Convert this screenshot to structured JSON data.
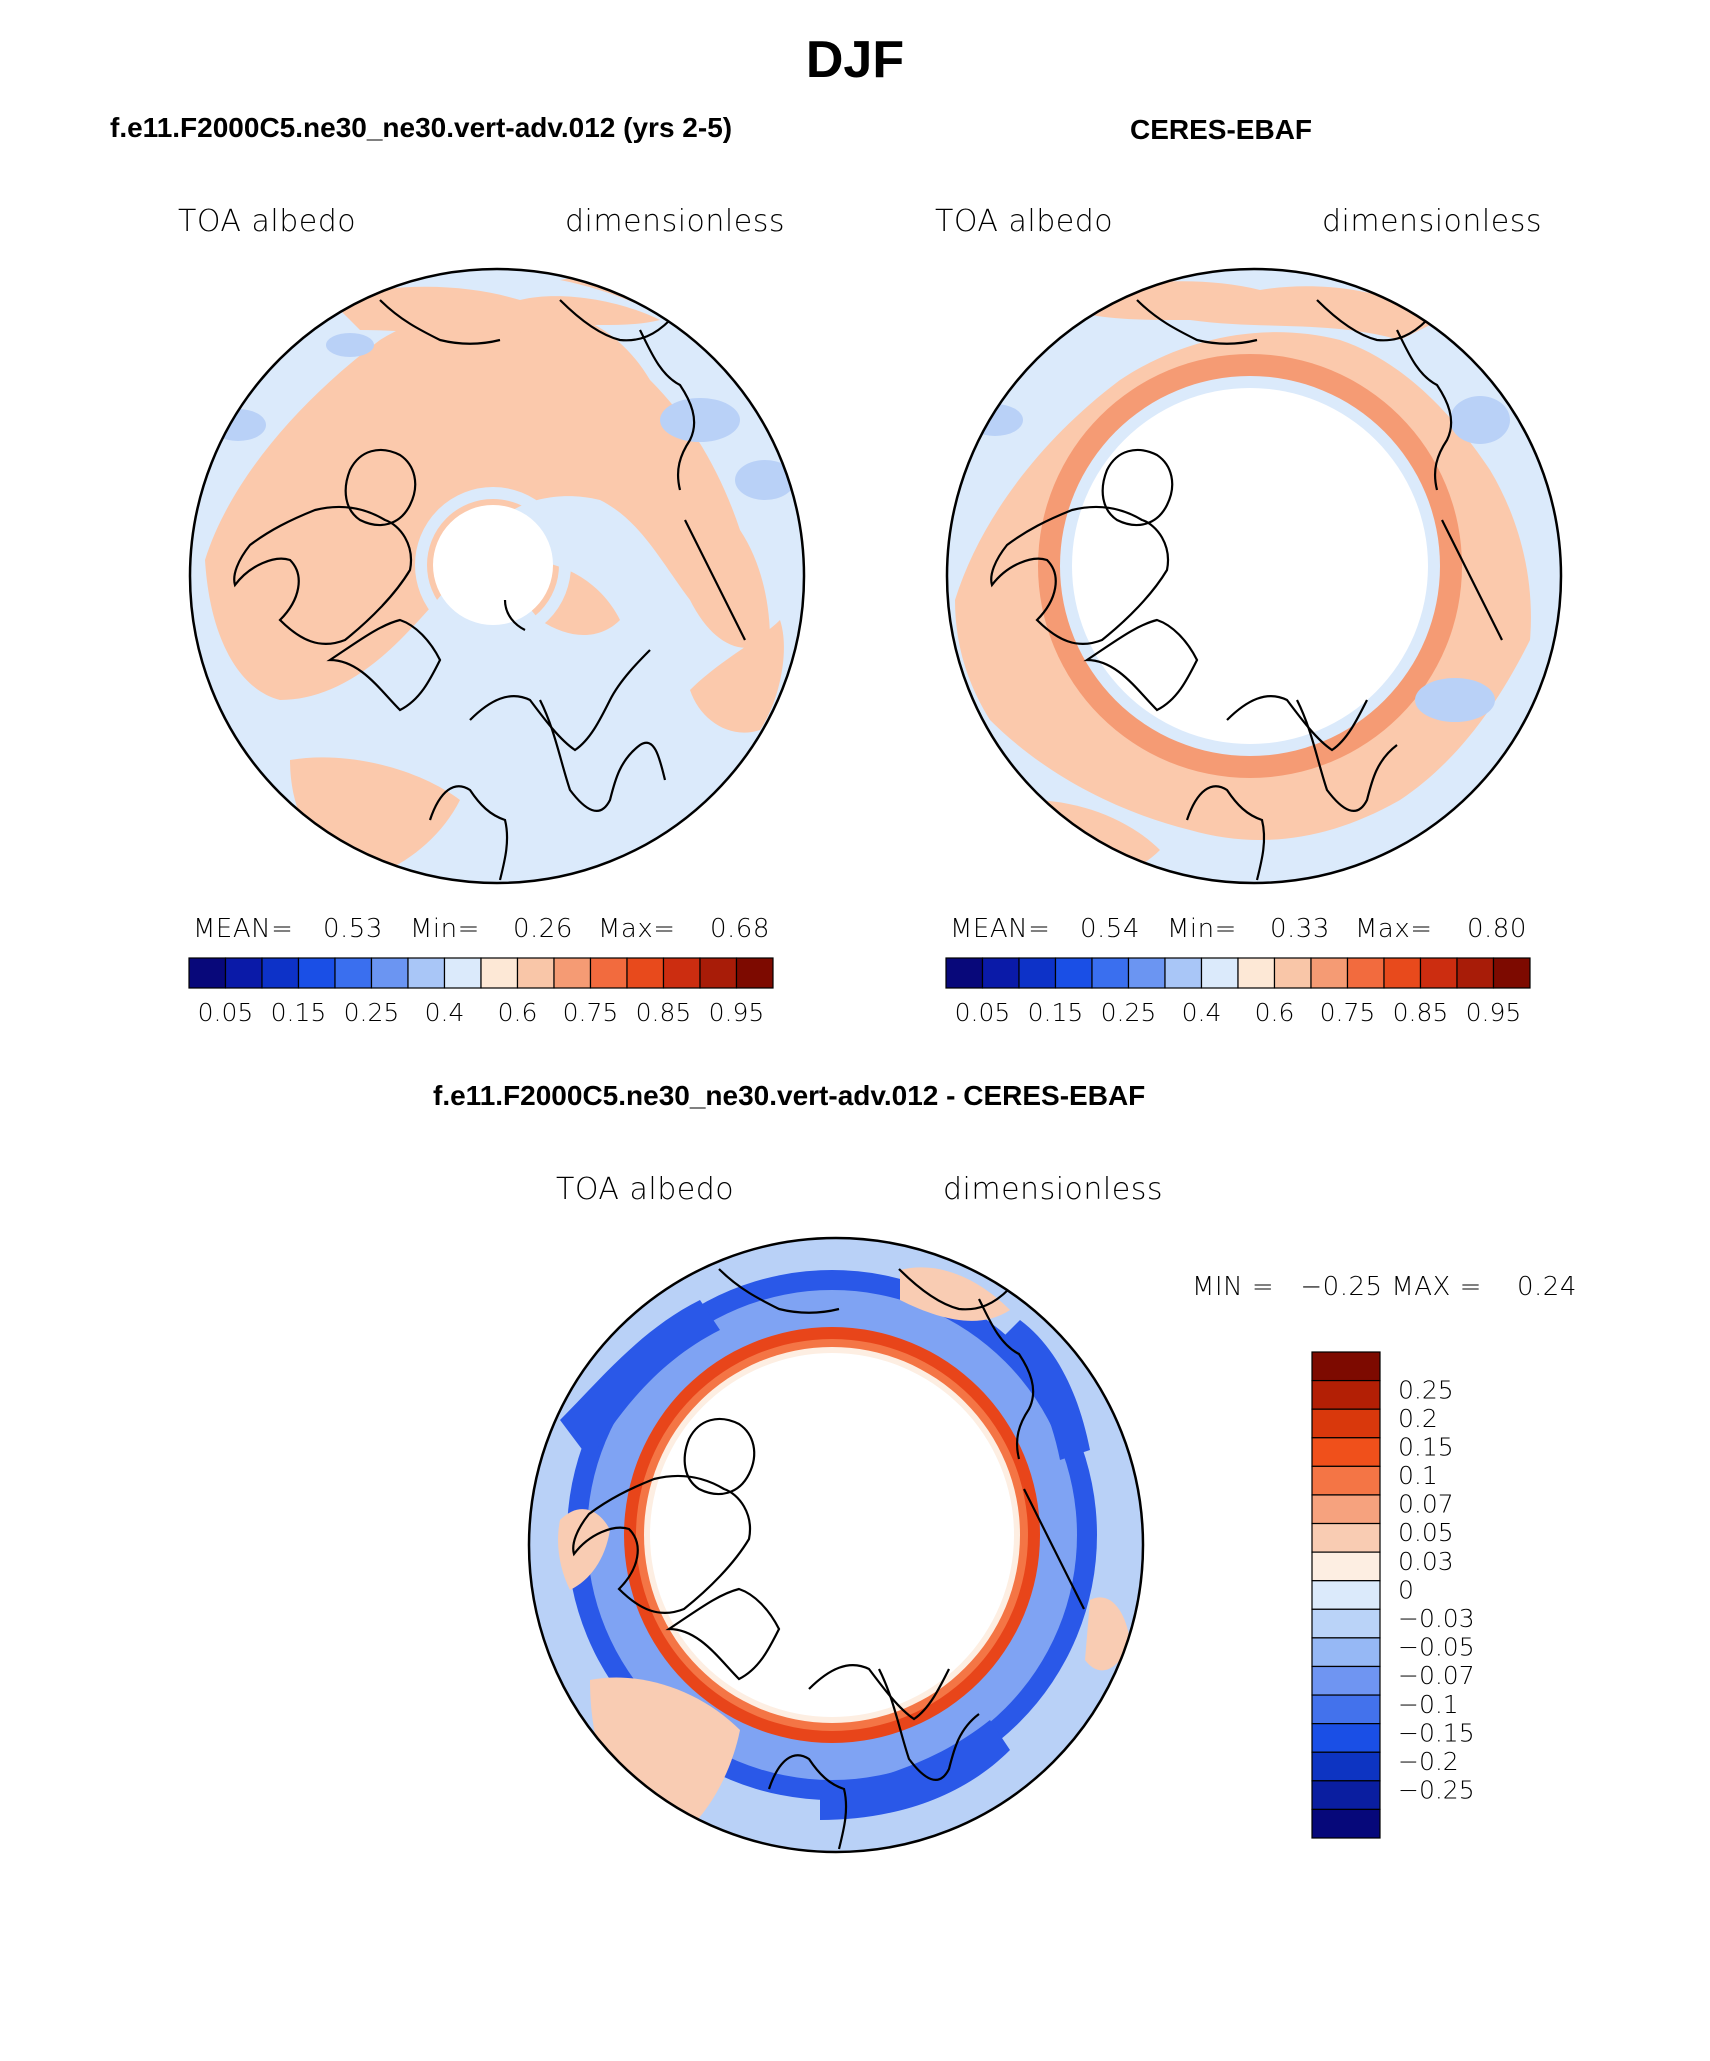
{
  "page": {
    "season": "DJF",
    "diff_title": "f.e11.F2000C5.ne30_ne30.vert-adv.012 - CERES-EBAF"
  },
  "panels": [
    {
      "id": "model",
      "title": "f.e11.F2000C5.ne30_ne30.vert-adv.012 (yrs 2-5)",
      "variable": "TOA albedo",
      "units": "dimensionless",
      "stats": {
        "mean_label": "MEAN=",
        "mean": "0.53",
        "min_label": "Min=",
        "min": "0.26",
        "max_label": "Max=",
        "max": "0.68"
      }
    },
    {
      "id": "obs",
      "title": "CERES-EBAF",
      "variable": "TOA albedo",
      "units": "dimensionless",
      "stats": {
        "mean_label": "MEAN=",
        "mean": "0.54",
        "min_label": "Min=",
        "min": "0.33",
        "max_label": "Max=",
        "max": "0.80"
      }
    }
  ],
  "diff_panel": {
    "variable": "TOA albedo",
    "units": "dimensionless",
    "minmax_text": "MIN =   −0.25 MAX =    0.24"
  },
  "colorbar_seq": {
    "colors": [
      "#08087a",
      "#0a1aa8",
      "#0d32c8",
      "#1a4fe6",
      "#3a6fef",
      "#6b95f2",
      "#a9c6f7",
      "#dbeafb",
      "#fde8d6",
      "#f9c6a8",
      "#f59b74",
      "#f26b3e",
      "#e84a1c",
      "#cc2d10",
      "#a81c08",
      "#7d0a00"
    ],
    "tick_labels": [
      "0.05",
      "0.15",
      "0.25",
      "0.4",
      "0.6",
      "0.75",
      "0.85",
      "0.95"
    ]
  },
  "colorbar_div": {
    "colors": [
      "#7d0a00",
      "#b31f05",
      "#d9380c",
      "#f0501b",
      "#f47545",
      "#f6a27e",
      "#f9ccb3",
      "#fdeee2",
      "#dbeafb",
      "#bad3f8",
      "#96b8f5",
      "#6f95f2",
      "#4372ec",
      "#1a4fe6",
      "#0d34c2",
      "#0a1ea0",
      "#06087a"
    ],
    "labels": [
      "0.25",
      "0.2",
      "0.15",
      "0.1",
      "0.07",
      "0.05",
      "0.03",
      "0",
      "−0.03",
      "−0.05",
      "−0.07",
      "−0.1",
      "−0.15",
      "−0.2",
      "−0.25"
    ]
  },
  "map_colors": {
    "land_orange": "#fbc9ac",
    "ocean_pale": "#dbeafb",
    "blue_light": "#b9d1f7",
    "blue_mid": "#7fa3f3",
    "blue_deep": "#2a58e8",
    "red_ring": "#e8451a",
    "orange_band": "#f59b74",
    "no_data": "#ffffff",
    "coast": "#000000"
  }
}
